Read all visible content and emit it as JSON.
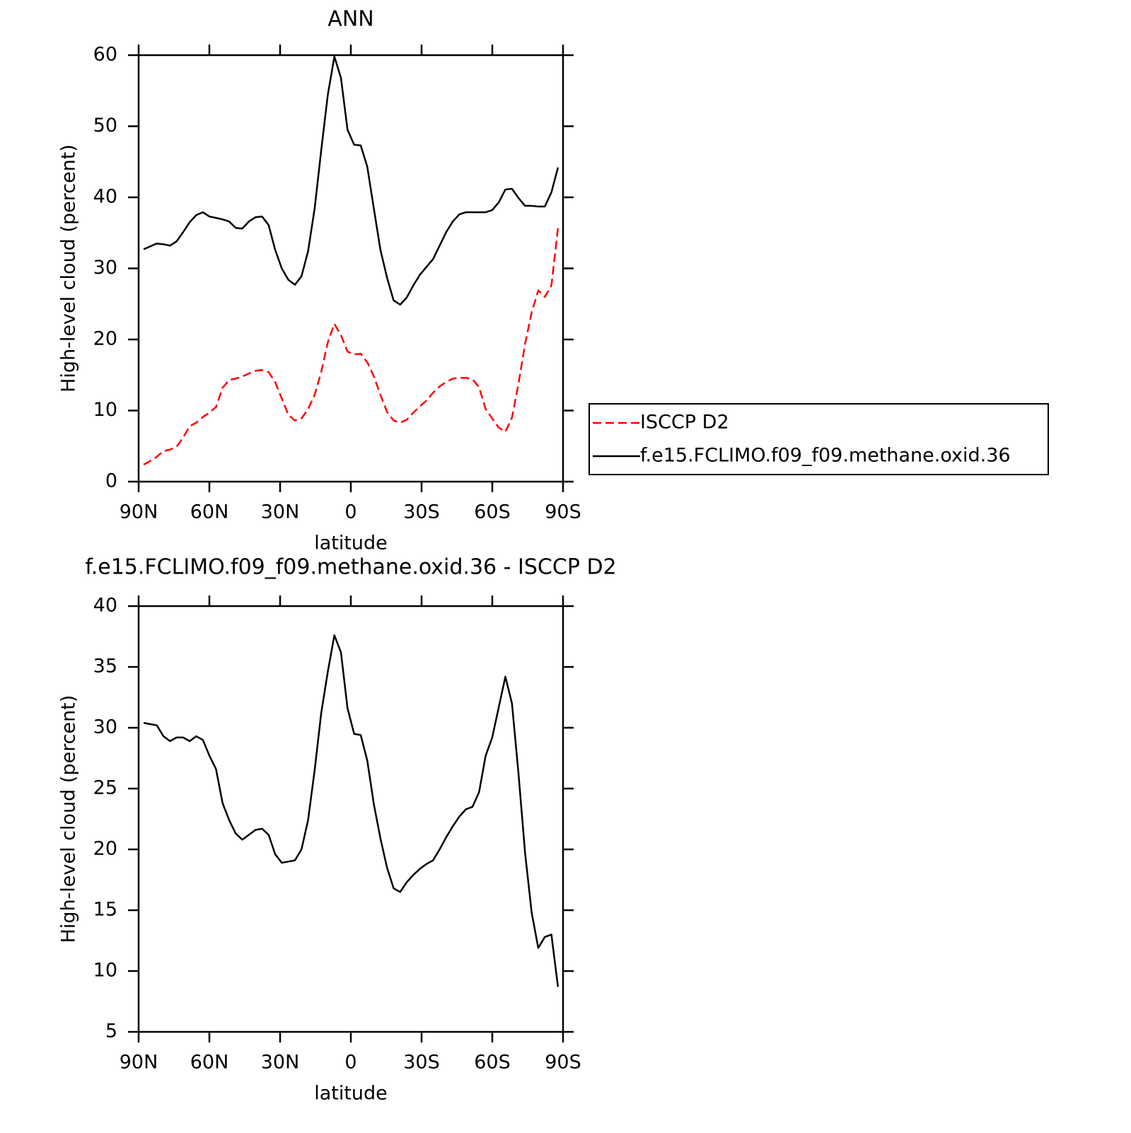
{
  "chart_data": [
    {
      "type": "line",
      "title": "ANN",
      "x_label": "latitude",
      "y_label": "High-level cloud (percent)",
      "x": [
        87.86,
        85.07,
        82.28,
        79.49,
        76.7,
        73.91,
        71.13,
        68.34,
        65.55,
        62.76,
        59.97,
        57.18,
        54.39,
        51.6,
        48.81,
        46.03,
        43.24,
        40.45,
        37.66,
        34.87,
        32.08,
        29.29,
        26.5,
        23.71,
        20.93,
        18.14,
        15.35,
        12.56,
        9.77,
        6.98,
        4.19,
        1.4,
        -1.4,
        -4.19,
        -6.98,
        -9.77,
        -12.56,
        -15.35,
        -18.14,
        -20.93,
        -23.71,
        -26.5,
        -29.29,
        -32.08,
        -34.87,
        -37.66,
        -40.45,
        -43.24,
        -46.03,
        -48.81,
        -51.6,
        -54.39,
        -57.18,
        -59.97,
        -62.76,
        -65.55,
        -68.34,
        -71.13,
        -73.91,
        -76.7,
        -79.49,
        -82.28,
        -85.07,
        -87.86
      ],
      "series": [
        {
          "name": "ISCCP D2",
          "color": "#ff0000",
          "linestyle": "dashed",
          "values": [
            2.4,
            2.9,
            3.5,
            4.3,
            4.5,
            4.9,
            6.2,
            7.8,
            8.3,
            9.1,
            9.7,
            10.5,
            13.2,
            14.3,
            14.5,
            14.8,
            15.2,
            15.6,
            15.7,
            15.4,
            14.0,
            11.7,
            9.4,
            8.6,
            8.9,
            10.2,
            12.2,
            15.4,
            19.6,
            22.2,
            20.6,
            18.3,
            17.9,
            18.0,
            16.8,
            14.8,
            12.2,
            9.8,
            8.6,
            8.3,
            8.7,
            9.7,
            10.6,
            11.4,
            12.5,
            13.4,
            14.0,
            14.5,
            14.6,
            14.6,
            14.4,
            13.3,
            10.2,
            8.9,
            7.6,
            7.0,
            9.0,
            13.8,
            19.4,
            23.8,
            26.9,
            26.0,
            27.6,
            35.7
          ]
        },
        {
          "name": "f.e15.FCLIMO.f09_f09.methane.oxid.36",
          "color": "#000000",
          "linestyle": "solid",
          "values": [
            32.7,
            33.1,
            33.5,
            33.4,
            33.2,
            33.8,
            35.1,
            36.5,
            37.5,
            37.9,
            37.3,
            37.1,
            36.9,
            36.6,
            35.7,
            35.6,
            36.6,
            37.2,
            37.3,
            36.1,
            32.6,
            30.0,
            28.4,
            27.7,
            28.9,
            32.4,
            38.4,
            46.6,
            54.4,
            59.8,
            56.8,
            49.5,
            47.4,
            47.3,
            44.3,
            38.4,
            32.6,
            28.7,
            25.5,
            24.9,
            25.9,
            27.6,
            29.1,
            30.2,
            31.3,
            33.2,
            35.1,
            36.6,
            37.6,
            37.9,
            37.9,
            37.9,
            37.9,
            38.2,
            39.3,
            41.1,
            41.2,
            39.9,
            38.8,
            38.8,
            38.7,
            38.7,
            40.7,
            44.2
          ]
        }
      ],
      "xlim": [
        90,
        -90
      ],
      "xticks": [
        {
          "value": 90,
          "label": "90N"
        },
        {
          "value": 60,
          "label": "60N"
        },
        {
          "value": 30,
          "label": "30N"
        },
        0,
        {
          "value": -30,
          "label": "30S"
        },
        {
          "value": -60,
          "label": "60S"
        },
        {
          "value": -90,
          "label": "90S"
        }
      ],
      "ylim": [
        0,
        60
      ],
      "yticks": [
        0,
        10,
        20,
        30,
        40,
        50,
        60
      ],
      "legend": "right"
    },
    {
      "type": "line",
      "title": "f.e15.FCLIMO.f09_f09.methane.oxid.36 - ISCCP D2",
      "x_label": "latitude",
      "y_label": "High-level cloud (percent)",
      "x": [
        87.86,
        85.07,
        82.28,
        79.49,
        76.7,
        73.91,
        71.13,
        68.34,
        65.55,
        62.76,
        59.97,
        57.18,
        54.39,
        51.6,
        48.81,
        46.03,
        43.24,
        40.45,
        37.66,
        34.87,
        32.08,
        29.29,
        26.5,
        23.71,
        20.93,
        18.14,
        15.35,
        12.56,
        9.77,
        6.98,
        4.19,
        1.4,
        -1.4,
        -4.19,
        -6.98,
        -9.77,
        -12.56,
        -15.35,
        -18.14,
        -20.93,
        -23.71,
        -26.5,
        -29.29,
        -32.08,
        -34.87,
        -37.66,
        -40.45,
        -43.24,
        -46.03,
        -48.81,
        -51.6,
        -54.39,
        -57.18,
        -59.97,
        -62.76,
        -65.55,
        -68.34,
        -71.13,
        -73.91,
        -76.7,
        -79.49,
        -82.28,
        -85.07,
        -87.86
      ],
      "series": [
        {
          "color": "#000000",
          "linestyle": "solid",
          "values": [
            30.4,
            30.3,
            30.2,
            29.3,
            28.9,
            29.2,
            29.2,
            28.9,
            29.3,
            29.0,
            27.7,
            26.6,
            23.8,
            22.4,
            21.3,
            20.8,
            21.2,
            21.6,
            21.7,
            21.2,
            19.6,
            18.9,
            19.0,
            19.1,
            20.0,
            22.4,
            26.5,
            31.2,
            34.6,
            37.6,
            36.2,
            31.6,
            29.5,
            29.4,
            27.3,
            23.7,
            20.9,
            18.5,
            16.8,
            16.5,
            17.3,
            17.9,
            18.4,
            18.8,
            19.1,
            20.0,
            21.0,
            21.9,
            22.7,
            23.3,
            23.5,
            24.7,
            27.7,
            29.2,
            31.7,
            34.2,
            32.0,
            26.2,
            19.7,
            14.8,
            11.9,
            12.8,
            13.0,
            8.7
          ]
        }
      ],
      "xlim": [
        90,
        -90
      ],
      "xticks": [
        {
          "value": 90,
          "label": "90N"
        },
        {
          "value": 60,
          "label": "60N"
        },
        {
          "value": 30,
          "label": "30N"
        },
        0,
        {
          "value": -30,
          "label": "30S"
        },
        {
          "value": -60,
          "label": "60S"
        },
        {
          "value": -90,
          "label": "90S"
        }
      ],
      "ylim": [
        5,
        40
      ],
      "yticks": [
        5,
        10,
        15,
        20,
        25,
        30,
        35,
        40
      ]
    }
  ]
}
